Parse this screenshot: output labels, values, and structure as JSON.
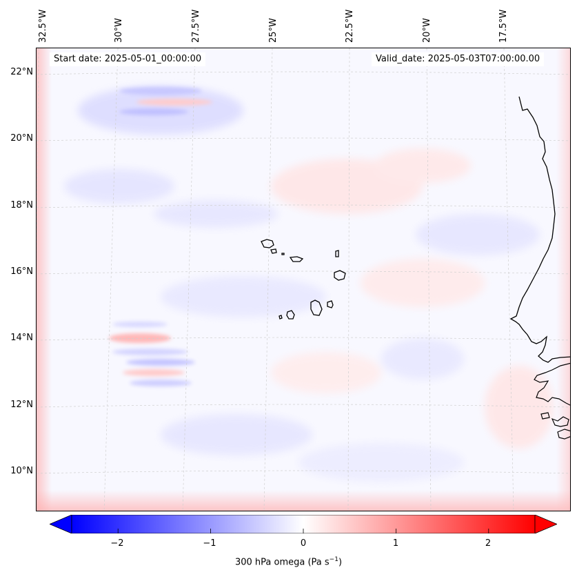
{
  "map": {
    "start_date": "Start date: 2025-05-01_00:00:00",
    "valid_date": "Valid_date: 2025-05-03T07:00:00.00",
    "longitude_labels": [
      "32.5°W",
      "30°W",
      "27.5°W",
      "25°W",
      "22.5°W",
      "20°W",
      "17.5°W"
    ],
    "latitude_labels": [
      "22°N",
      "20°N",
      "18°N",
      "16°N",
      "14°N",
      "12°N",
      "10°N"
    ],
    "variable": "300 hPa omega",
    "colormap": "bwr",
    "colors": {
      "negative": "#0000ff",
      "zero": "#ffffff",
      "positive": "#ff0000",
      "coastline": "#000000",
      "gridline": "#cccccc"
    },
    "features": [
      "coastline-west-africa",
      "cabo-verde-islands"
    ]
  },
  "colorbar": {
    "tick_labels": [
      "−2",
      "−1",
      "0",
      "1",
      "2"
    ],
    "tick_values": [
      -2,
      -1,
      0,
      1,
      2
    ],
    "range": [
      -2.5,
      2.5
    ],
    "extend": "both",
    "label_text": "300 hPa omega (Pa s",
    "label_exponent": "−1",
    "label_close": ")"
  }
}
